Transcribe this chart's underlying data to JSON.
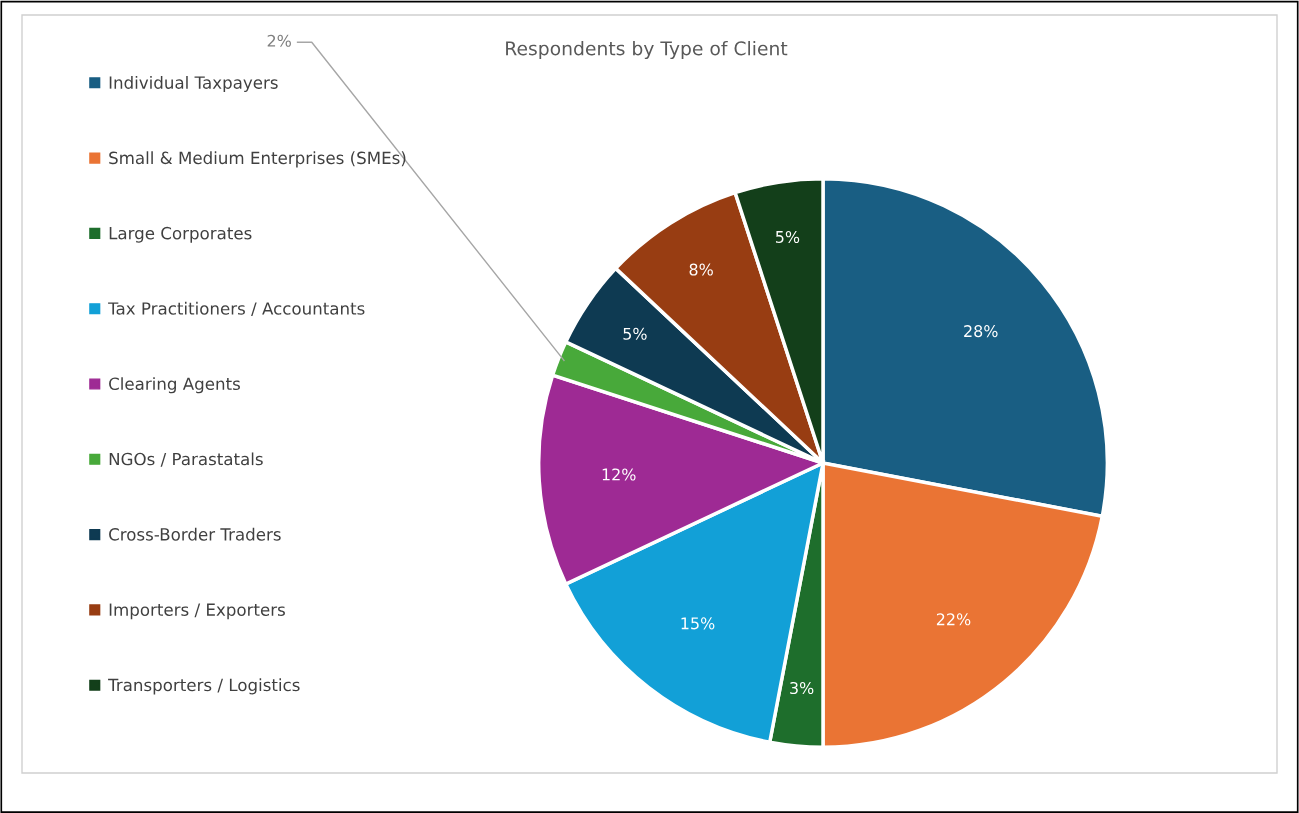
{
  "chart_data": {
    "type": "pie",
    "title": "Respondents by Type of Client",
    "categories": [
      "Individual Taxpayers",
      "Small & Medium Enterprises (SMEs)",
      "Large Corporates",
      "Tax Practitioners / Accountants",
      "Clearing Agents",
      "NGOs / Parastatals",
      "Cross-Border Traders",
      "Importers / Exporters",
      "Transporters / Logistics"
    ],
    "values": [
      28,
      22,
      3,
      15,
      12,
      2,
      5,
      8,
      5
    ],
    "colors": [
      "#195e83",
      "#ea7434",
      "#1e6e2c",
      "#12a0d7",
      "#9e2a94",
      "#48a93a",
      "#0e3a52",
      "#983d12",
      "#133f1a"
    ],
    "value_labels": [
      "28%",
      "22%",
      "3%",
      "15%",
      "12%",
      "2%",
      "5%",
      "8%",
      "5%"
    ],
    "legend": "left"
  }
}
